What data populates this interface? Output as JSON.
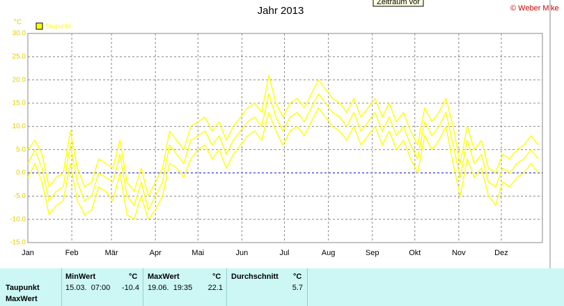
{
  "toolbar": {
    "button": "Zeitraum vor",
    "copyright": "© Weber Mike"
  },
  "chart_data": {
    "type": "line",
    "title": "Jahr 2013",
    "y_label": "°C",
    "x": [
      1,
      6,
      11,
      16,
      21,
      26,
      31,
      36,
      41,
      46,
      51,
      56,
      61,
      66,
      71,
      76,
      81,
      86,
      91,
      96,
      101,
      106,
      111,
      116,
      121,
      126,
      131,
      136,
      141,
      146,
      151,
      156,
      161,
      166,
      171,
      176,
      181,
      186,
      191,
      196,
      201,
      206,
      211,
      216,
      221,
      226,
      231,
      236,
      241,
      246,
      251,
      256,
      261,
      266,
      271,
      276,
      281,
      286,
      291,
      296,
      301,
      306,
      311,
      316,
      321,
      326,
      331,
      336,
      341,
      346,
      351,
      356,
      361
    ],
    "series": [
      {
        "name": "Taupunkt",
        "color": "#ffff00",
        "values": [
          2,
          5,
          1,
          -6,
          -4,
          -3,
          6,
          -2,
          -6,
          -5,
          0,
          -1,
          -2,
          4,
          -5,
          -7,
          -2,
          -8,
          -5,
          -2,
          6,
          4,
          2,
          7,
          8,
          9,
          6,
          8,
          4,
          7,
          9,
          11,
          12,
          10,
          17,
          12,
          9,
          12,
          13,
          11,
          14,
          17,
          15,
          13,
          12,
          10,
          13,
          9,
          11,
          13,
          9,
          12,
          8,
          10,
          6,
          3,
          11,
          8,
          10,
          13,
          6,
          -1,
          7,
          2,
          4,
          -2,
          -3,
          1,
          0,
          2,
          3,
          5,
          3
        ]
      },
      {
        "color": "#ffff00",
        "values": [
          -1,
          2,
          -2,
          -9,
          -7,
          -6,
          2,
          -6,
          -9,
          -8,
          -3,
          -4,
          -6,
          0,
          -9,
          -10,
          -5,
          -10,
          -8,
          -5,
          2,
          1,
          -1,
          3,
          5,
          6,
          3,
          5,
          1,
          4,
          6,
          8,
          9,
          7,
          13,
          9,
          6,
          9,
          10,
          8,
          11,
          14,
          12,
          10,
          9,
          7,
          10,
          6,
          8,
          10,
          6,
          9,
          5,
          7,
          3,
          0,
          8,
          5,
          7,
          10,
          2,
          -5,
          3,
          -1,
          1,
          -5,
          -7,
          -2,
          -3,
          -1,
          0,
          2,
          0
        ]
      },
      {
        "color": "#ffff00",
        "values": [
          5,
          7,
          4,
          -3,
          -1,
          0,
          9,
          1,
          -3,
          -2,
          3,
          2,
          1,
          7,
          -2,
          -4,
          1,
          -5,
          -2,
          1,
          9,
          7,
          5,
          10,
          11,
          12,
          9,
          11,
          7,
          10,
          12,
          14,
          15,
          13,
          21,
          15,
          12,
          15,
          16,
          14,
          17,
          20,
          18,
          16,
          15,
          13,
          16,
          12,
          14,
          16,
          12,
          15,
          11,
          13,
          9,
          6,
          14,
          11,
          13,
          16,
          10,
          2,
          10,
          5,
          7,
          1,
          0,
          4,
          3,
          5,
          6,
          8,
          6
        ]
      }
    ],
    "xlim": [
      1,
      364
    ],
    "xticks": [
      {
        "value": 1,
        "label": "Jan"
      },
      {
        "value": 32,
        "label": "Feb"
      },
      {
        "value": 60,
        "label": "Mär"
      },
      {
        "value": 91,
        "label": "Apr"
      },
      {
        "value": 121,
        "label": "Mai"
      },
      {
        "value": 152,
        "label": "Jun"
      },
      {
        "value": 182,
        "label": "Jul"
      },
      {
        "value": 213,
        "label": "Aug"
      },
      {
        "value": 244,
        "label": "Sep"
      },
      {
        "value": 274,
        "label": "Okt"
      },
      {
        "value": 305,
        "label": "Nov"
      },
      {
        "value": 335,
        "label": "Dez"
      }
    ],
    "ylim": [
      -15,
      30
    ],
    "yticks": [
      {
        "value": -15,
        "label": "-15.0"
      },
      {
        "value": -10,
        "label": "-10.0"
      },
      {
        "value": -5,
        "label": "-5.0"
      },
      {
        "value": 0,
        "label": "0.0"
      },
      {
        "value": 5,
        "label": "5.0"
      },
      {
        "value": 10,
        "label": "10.0"
      },
      {
        "value": 15,
        "label": "15.0"
      },
      {
        "value": 20,
        "label": "20.0"
      },
      {
        "value": 25,
        "label": "25.0"
      },
      {
        "value": 30,
        "label": "30.0"
      }
    ],
    "grid": true,
    "zero_line_color": "#0000cc"
  },
  "summary": {
    "headers": [
      "MinWert",
      "°C",
      "MaxWert",
      "°C",
      "Durchschnitt",
      "°C"
    ],
    "rows": [
      {
        "label": "Taupunkt",
        "min_time": "15.03.  07:00",
        "min": -10.4,
        "max_time": "19.06.  19:35",
        "max": 22.1,
        "mean": 5.7
      },
      {
        "label": "MaxWert"
      }
    ]
  }
}
